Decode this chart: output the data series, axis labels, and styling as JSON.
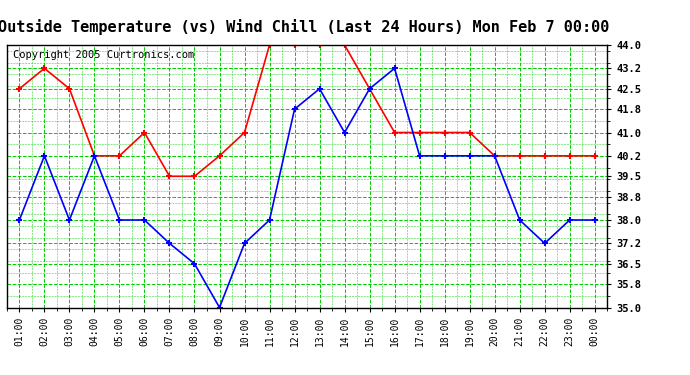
{
  "title": "Outside Temperature (vs) Wind Chill (Last 24 Hours) Mon Feb 7 00:00",
  "copyright": "Copyright 2005 Curtronics.com",
  "x_labels": [
    "01:00",
    "02:00",
    "03:00",
    "04:00",
    "05:00",
    "06:00",
    "07:00",
    "08:00",
    "09:00",
    "10:00",
    "11:00",
    "12:00",
    "13:00",
    "14:00",
    "15:00",
    "16:00",
    "17:00",
    "18:00",
    "19:00",
    "20:00",
    "21:00",
    "22:00",
    "23:00",
    "00:00"
  ],
  "red_data": [
    42.5,
    43.2,
    42.5,
    40.2,
    40.2,
    41.0,
    39.5,
    39.5,
    40.2,
    41.0,
    44.0,
    44.0,
    44.0,
    44.0,
    42.5,
    41.0,
    41.0,
    41.0,
    41.0,
    40.2,
    40.2,
    40.2,
    40.2,
    40.2
  ],
  "blue_data": [
    38.0,
    40.2,
    38.0,
    40.2,
    38.0,
    38.0,
    37.2,
    36.5,
    35.0,
    37.2,
    38.0,
    41.8,
    42.5,
    41.0,
    42.5,
    43.2,
    40.2,
    40.2,
    40.2,
    40.2,
    38.0,
    37.2,
    38.0,
    38.0
  ],
  "ylim": [
    35.0,
    44.0
  ],
  "yticks": [
    35.0,
    35.8,
    36.5,
    37.2,
    38.0,
    38.8,
    39.5,
    40.2,
    41.0,
    41.8,
    42.5,
    43.2,
    44.0
  ],
  "red_color": "#ff0000",
  "blue_color": "#0000ff",
  "grid_color": "#00cc00",
  "bg_color": "#ffffff",
  "title_fontsize": 11,
  "copyright_fontsize": 7.5
}
